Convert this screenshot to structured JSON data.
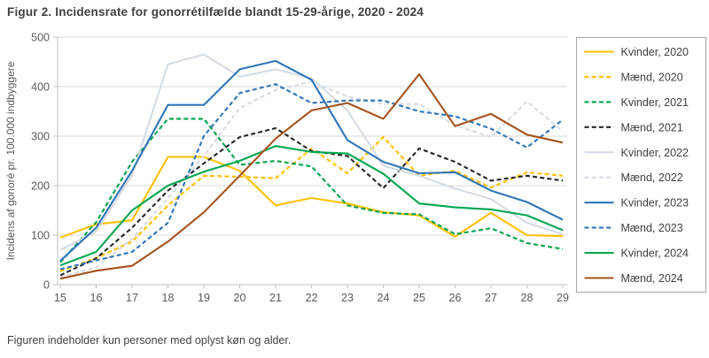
{
  "title": "Figur 2. Incidensrate for gonorrétilfælde blandt 15-29-årige, 2020 - 2024",
  "footer": "Figuren indeholder kun personer med oplyst køn og alder.",
  "colors": {
    "gold": "#FFC000",
    "green_2021": "#00A14E",
    "black": "#262626",
    "lightgray": "#D6DCE5",
    "blue": "#2E75B6",
    "green_2024": "#00A651",
    "brown": "#A4531D",
    "grid": "#D9D9D9",
    "axis": "#BFBFBF",
    "tick_text": "#595959",
    "legend_border": "#A6A6A6",
    "legend_text": "#404040"
  },
  "chart_data": {
    "type": "line",
    "title": "Figur 2. Incidensrate for gonorrétilfælde blandt 15-29-årige, 2020 - 2024",
    "xlabel": "",
    "ylabel": "Incidens af gonoré pr. 100.000 indbyggere",
    "x": [
      15,
      16,
      17,
      18,
      19,
      20,
      21,
      22,
      23,
      24,
      25,
      26,
      27,
      28,
      29
    ],
    "xlim": [
      15,
      29
    ],
    "ylim": [
      0,
      500
    ],
    "yticks": [
      0,
      100,
      200,
      300,
      400,
      500
    ],
    "grid": "horizontal",
    "legend_position": "right",
    "series": [
      {
        "name": "Kvinder, 2020",
        "color": "#FFC000",
        "dash": "solid",
        "values": [
          95,
          122,
          130,
          258,
          258,
          230,
          160,
          175,
          164,
          146,
          140,
          97,
          145,
          100,
          98
        ]
      },
      {
        "name": "Mænd, 2020",
        "color": "#FFC000",
        "dash": "dash",
        "values": [
          27,
          54,
          87,
          160,
          220,
          218,
          215,
          275,
          225,
          298,
          220,
          230,
          196,
          227,
          220
        ]
      },
      {
        "name": "Kvinder, 2021",
        "color": "#00A14E",
        "dash": "dash",
        "values": [
          45,
          126,
          248,
          335,
          335,
          242,
          250,
          239,
          160,
          145,
          142,
          102,
          114,
          84,
          72
        ]
      },
      {
        "name": "Mænd, 2021",
        "color": "#262626",
        "dash": "dash",
        "values": [
          19,
          53,
          115,
          190,
          245,
          298,
          316,
          270,
          260,
          195,
          275,
          248,
          210,
          220,
          210
        ]
      },
      {
        "name": "Kvinder, 2022",
        "color": "#D6DCE5",
        "dash": "solid",
        "values": [
          70,
          107,
          221,
          445,
          465,
          420,
          435,
          417,
          352,
          240,
          220,
          194,
          173,
          125,
          102
        ]
      },
      {
        "name": "Mænd, 2022",
        "color": "#D6DCE5",
        "dash": "dash",
        "values": [
          15,
          35,
          93,
          175,
          260,
          357,
          393,
          410,
          380,
          365,
          365,
          322,
          298,
          370,
          310
        ]
      },
      {
        "name": "Kvinder, 2023",
        "color": "#2E75B6",
        "dash": "solid",
        "values": [
          48,
          115,
          230,
          363,
          363,
          435,
          452,
          414,
          292,
          248,
          225,
          227,
          190,
          167,
          131
        ]
      },
      {
        "name": "Mænd, 2023",
        "color": "#2E75B6",
        "dash": "dash",
        "values": [
          31,
          49,
          66,
          125,
          300,
          387,
          405,
          367,
          372,
          372,
          350,
          340,
          315,
          277,
          333
        ]
      },
      {
        "name": "Kvinder, 2024",
        "color": "#00A651",
        "dash": "solid",
        "values": [
          39,
          66,
          150,
          200,
          228,
          250,
          280,
          268,
          265,
          224,
          164,
          156,
          152,
          140,
          110
        ]
      },
      {
        "name": "Mænd, 2024",
        "color": "#A4531D",
        "dash": "solid",
        "values": [
          12,
          28,
          38,
          87,
          146,
          220,
          295,
          352,
          367,
          335,
          425,
          320,
          345,
          303,
          287
        ]
      }
    ]
  }
}
